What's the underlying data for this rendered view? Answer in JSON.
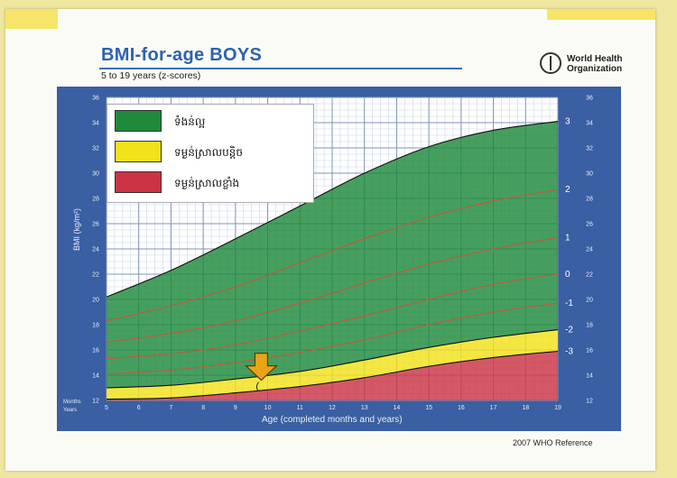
{
  "header": {
    "title": "BMI-for-age  BOYS",
    "subtitle": "5 to 19 years (z-scores)",
    "org": "World Health Organization",
    "reference": "2007  WHO Reference"
  },
  "legend": [
    {
      "label": "ទំងន់ល្អ",
      "color": "#1e8a3c"
    },
    {
      "label": "ទម្ងន់ស្រាលបន្តិច",
      "color": "#f2e21a"
    },
    {
      "label": "ទម្ងន់ស្រាលខ្លាំង",
      "color": "#cc3344"
    }
  ],
  "chart_data": {
    "type": "area",
    "title": "BMI-for-age  BOYS",
    "subtitle": "5 to 19 years (z-scores)",
    "xlabel": "Age (completed months and years)",
    "ylabel": "BMI (kg/m²)",
    "corner_labels": [
      "Months",
      "Years"
    ],
    "x_ticks": [
      5,
      6,
      7,
      8,
      9,
      10,
      11,
      12,
      13,
      14,
      15,
      16,
      17,
      18,
      19
    ],
    "y_ticks": [
      12,
      14,
      16,
      18,
      20,
      22,
      24,
      26,
      28,
      30,
      32,
      34,
      36
    ],
    "xlim": [
      5,
      19
    ],
    "ylim": [
      12,
      36
    ],
    "grid": true,
    "x": [
      5,
      7,
      9,
      11,
      13,
      15,
      17,
      19
    ],
    "series": [
      {
        "name": "-3",
        "values": [
          12.1,
          12.2,
          12.6,
          13.1,
          13.8,
          14.7,
          15.4,
          15.9
        ]
      },
      {
        "name": "-2",
        "values": [
          13.0,
          13.2,
          13.7,
          14.3,
          15.2,
          16.2,
          17.0,
          17.6
        ]
      },
      {
        "name": "-1",
        "values": [
          14.1,
          14.4,
          15.0,
          15.8,
          16.8,
          18.0,
          19.0,
          19.7
        ]
      },
      {
        "name": "0",
        "values": [
          15.3,
          15.7,
          16.4,
          17.5,
          18.7,
          20.0,
          21.2,
          22.0
        ]
      },
      {
        "name": "1",
        "values": [
          16.6,
          17.3,
          18.3,
          19.7,
          21.3,
          22.8,
          24.0,
          24.9
        ]
      },
      {
        "name": "2",
        "values": [
          18.3,
          19.5,
          21.0,
          22.9,
          24.8,
          26.5,
          27.8,
          28.7
        ]
      },
      {
        "name": "3",
        "values": [
          20.2,
          22.3,
          24.8,
          27.4,
          30.0,
          32.1,
          33.4,
          34.1
        ]
      }
    ],
    "zones": [
      {
        "label": "ទំងន់ល្អ",
        "from": "-2",
        "to": "3",
        "color": "#1e8a3c"
      },
      {
        "label": "ទម្ងន់ស្រាលបន្តិច",
        "from": "-3",
        "to": "-2",
        "color": "#f2e21a"
      },
      {
        "label": "ទម្ងន់ស្រាលខ្លាំង",
        "from": "bottom",
        "to": "-3",
        "color": "#cc3344"
      }
    ],
    "annotation": {
      "type": "arrow",
      "x": 9.8,
      "y": 13.6,
      "color": "#e8a417"
    }
  }
}
